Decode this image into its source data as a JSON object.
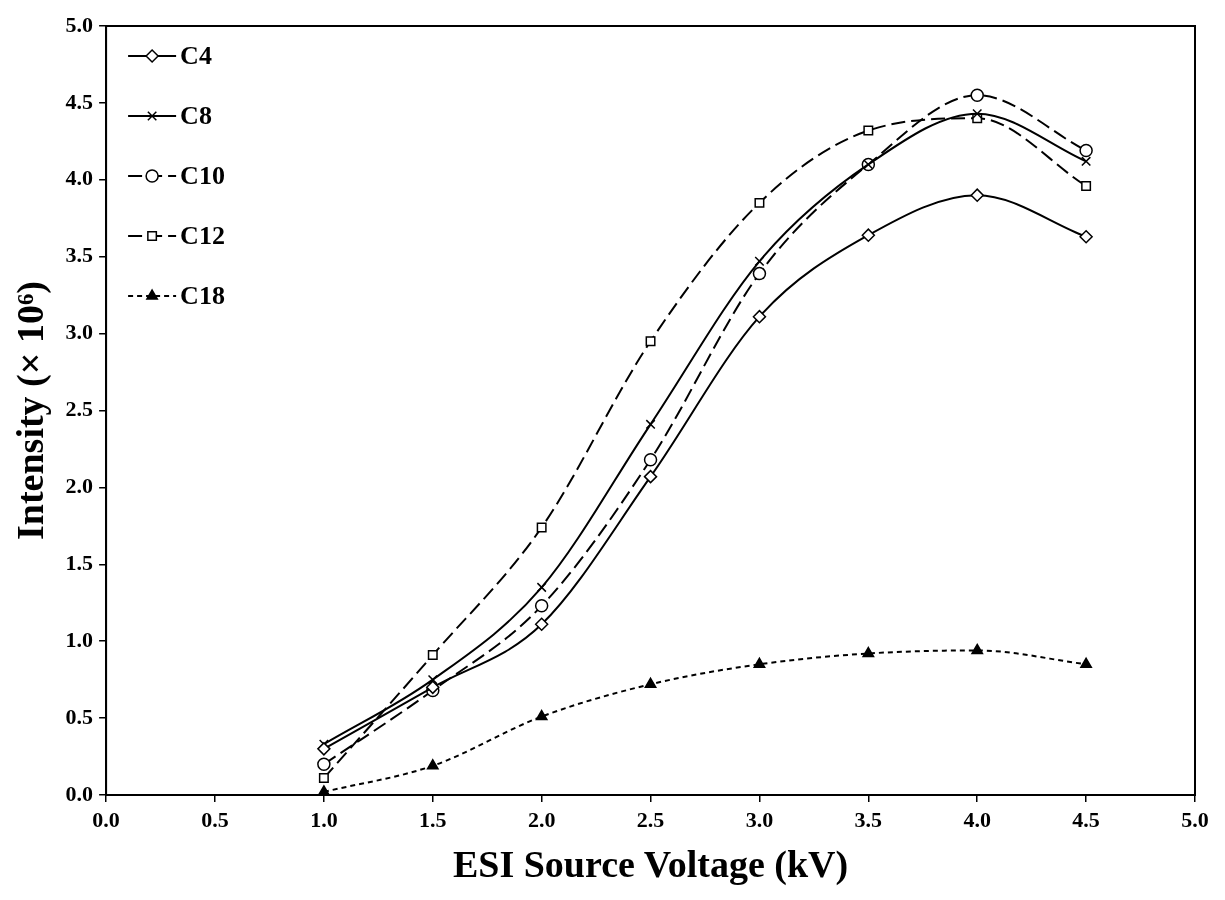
{
  "chart_data": {
    "type": "line",
    "xlabel": "ESI Source Voltage (kV)",
    "ylabel": "Intensity (× 10⁶)",
    "x": [
      1.0,
      1.5,
      2.0,
      2.5,
      3.0,
      3.5,
      4.0,
      4.5
    ],
    "series": [
      {
        "name": "C4",
        "color": "#000000",
        "marker": "diamond",
        "line_style": "solid",
        "values": [
          0.3,
          0.7,
          1.11,
          2.07,
          3.11,
          3.64,
          3.9,
          3.63
        ]
      },
      {
        "name": "C8",
        "color": "#000000",
        "marker": "cross",
        "line_style": "solid",
        "values": [
          0.33,
          0.75,
          1.35,
          2.41,
          3.47,
          4.1,
          4.43,
          4.12
        ]
      },
      {
        "name": "C10",
        "color": "#000000",
        "marker": "circle",
        "line_style": "dashed",
        "values": [
          0.2,
          0.68,
          1.23,
          2.18,
          3.39,
          4.1,
          4.55,
          4.19
        ]
      },
      {
        "name": "C12",
        "color": "#000000",
        "marker": "square",
        "line_style": "dashed",
        "values": [
          0.11,
          0.91,
          1.74,
          2.95,
          3.85,
          4.32,
          4.4,
          3.96
        ]
      },
      {
        "name": "C18",
        "color": "#000000",
        "marker": "triangle",
        "line_style": "dotted",
        "values": [
          0.02,
          0.19,
          0.51,
          0.72,
          0.85,
          0.92,
          0.94,
          0.85
        ]
      }
    ],
    "xlim": [
      0,
      5
    ],
    "xticks": [
      {
        "value": 0,
        "label": "0.0"
      },
      {
        "value": 0.5,
        "label": "0.5"
      },
      {
        "value": 1,
        "label": "1.0"
      },
      {
        "value": 1.5,
        "label": "1.5"
      },
      {
        "value": 2,
        "label": "2.0"
      },
      {
        "value": 2.5,
        "label": "2.5"
      },
      {
        "value": 3,
        "label": "3.0"
      },
      {
        "value": 3.5,
        "label": "3.5"
      },
      {
        "value": 4,
        "label": "4.0"
      },
      {
        "value": 4.5,
        "label": "4.5"
      },
      {
        "value": 5,
        "label": "5.0"
      }
    ],
    "ylim": [
      0,
      5
    ],
    "yticks": [
      {
        "value": 0,
        "label": "0.0"
      },
      {
        "value": 0.5,
        "label": "0.5"
      },
      {
        "value": 1,
        "label": "1.0"
      },
      {
        "value": 1.5,
        "label": "1.5"
      },
      {
        "value": 2,
        "label": "2.0"
      },
      {
        "value": 2.5,
        "label": "2.5"
      },
      {
        "value": 3,
        "label": "3.0"
      },
      {
        "value": 3.5,
        "label": "3.5"
      },
      {
        "value": 4,
        "label": "4.0"
      },
      {
        "value": 4.5,
        "label": "4.5"
      },
      {
        "value": 5,
        "label": "5.0"
      }
    ],
    "grid": false,
    "legend": "top left"
  }
}
